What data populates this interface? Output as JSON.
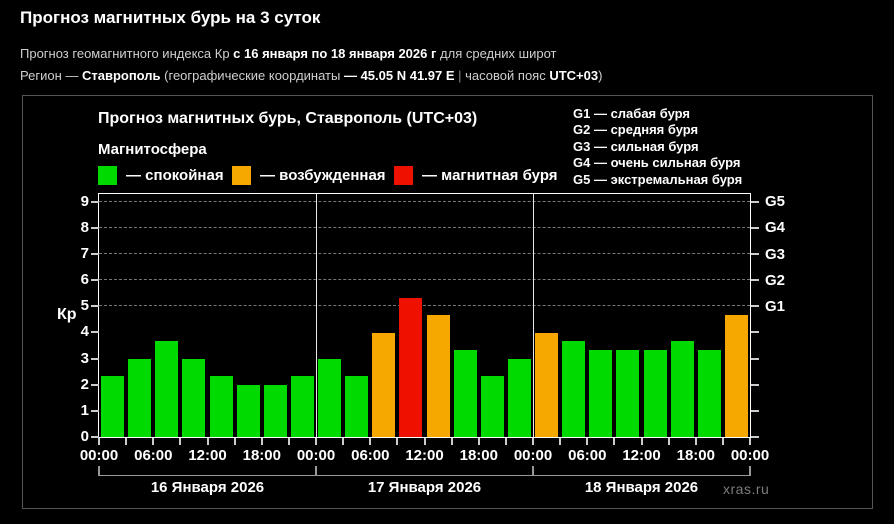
{
  "header": {
    "title": "Прогноз магнитных бурь на 3 суток",
    "line2": {
      "prefix": "Прогноз геомагнитного индекса Кр ",
      "bold": "с 16 января по 18 января 2026 г",
      "suffix": " для средних широт"
    },
    "line3": {
      "p1": "Регион — ",
      "b1": "Ставрополь",
      "p2": " (географические координаты ",
      "b2": "— 45.05 N 41.97 E",
      "pipe": " | ",
      "p3": "часовой пояс ",
      "b3": "UTC+03",
      "p4": ")"
    }
  },
  "panel": {
    "chart_title": "Прогноз магнитных бурь, Ставрополь (UTC+03)",
    "legend_title": "Магнитосфера",
    "legend": [
      {
        "label": "— спокойная",
        "color": "#00da00",
        "state": "quiet"
      },
      {
        "label": "— возбужденная",
        "color": "#f7a800",
        "state": "excited"
      },
      {
        "label": "— магнитная буря",
        "color": "#ee1100",
        "state": "storm"
      }
    ],
    "g_legend": [
      "G1 — слабая буря",
      "G2 — средняя буря",
      "G3 — сильная буря",
      "G4 — очень сильная буря",
      "G5 — экстремальная буря"
    ],
    "watermark": "xras.ru"
  },
  "chart_data": {
    "type": "bar",
    "title": "Прогноз магнитных бурь, Ставрополь (UTC+03)",
    "ylabel": "Кр",
    "ylim": [
      0,
      9.3
    ],
    "yticks": [
      0,
      1,
      2,
      3,
      4,
      5,
      6,
      7,
      8,
      9
    ],
    "grid_levels": [
      5,
      6,
      7,
      8,
      9
    ],
    "right_scale_labels": {
      "5": "G1",
      "6": "G2",
      "7": "G3",
      "8": "G4",
      "9": "G5"
    },
    "time_labels": [
      "00:00",
      "06:00",
      "12:00",
      "18:00",
      "00:00",
      "06:00",
      "12:00",
      "18:00",
      "00:00",
      "06:00",
      "12:00",
      "18:00",
      "00:00"
    ],
    "interval_hours": 3,
    "colors": {
      "quiet": "#00da00",
      "excited": "#f7a800",
      "storm": "#ee1100"
    },
    "color_rule": "Kp < 4 quiet (green), 4 <= Kp < 5 excited (orange), Kp >= 5 storm (red)",
    "days": [
      {
        "date": "16 Января 2026",
        "values": [
          2.33,
          3.0,
          3.67,
          3.0,
          2.33,
          2.0,
          2.0,
          2.33
        ]
      },
      {
        "date": "17 Января 2026",
        "values": [
          3.0,
          2.33,
          4.0,
          5.33,
          4.67,
          3.33,
          2.33,
          3.0
        ]
      },
      {
        "date": "18 Января 2026",
        "values": [
          4.0,
          3.67,
          3.33,
          3.33,
          3.33,
          3.67,
          3.33,
          4.67
        ]
      }
    ],
    "grid": "dashed horizontal at G1–G5 levels",
    "legend_position": "top-left inside panel; G-scale legend top-right"
  }
}
